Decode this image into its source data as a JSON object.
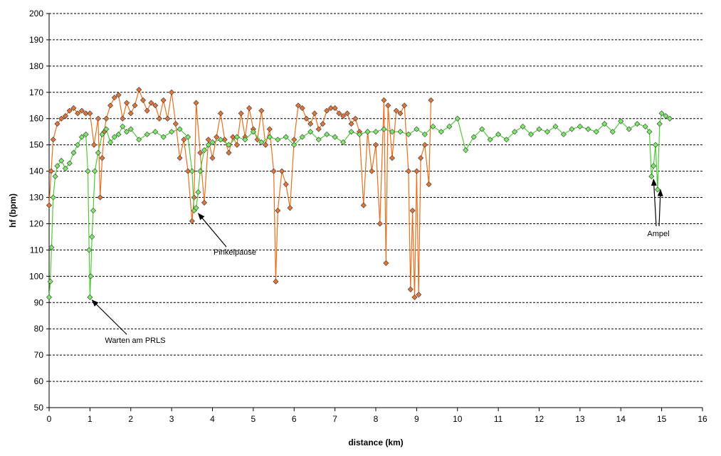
{
  "chart_data": {
    "type": "line",
    "xlabel": "distance (km)",
    "ylabel": "hf (bpm)",
    "xlim": [
      0,
      16
    ],
    "ylim": [
      50,
      200
    ],
    "x_ticks": [
      "0",
      "1",
      "2",
      "3",
      "4",
      "5",
      "6",
      "7",
      "8",
      "9",
      "10",
      "11",
      "12",
      "13",
      "14",
      "15",
      "16"
    ],
    "y_ticks": [
      "50",
      "60",
      "70",
      "80",
      "90",
      "100",
      "110",
      "120",
      "130",
      "140",
      "150",
      "160",
      "170",
      "180",
      "190",
      "200"
    ],
    "grid": "horizontal dashed",
    "legend": "none",
    "colors": {
      "series_green": "#4ccc33",
      "series_orange": "#e8701e",
      "marker_green": "#7ee86a",
      "marker_orange": "#e0763a"
    },
    "series": [
      {
        "color": "#4ccc33",
        "x": [
          0.0,
          0.03,
          0.06,
          0.1,
          0.15,
          0.2,
          0.3,
          0.4,
          0.5,
          0.6,
          0.7,
          0.8,
          0.9,
          0.95,
          0.98,
          1.0,
          1.02,
          1.05,
          1.08,
          1.12,
          1.2,
          1.3,
          1.4,
          1.5,
          1.6,
          1.7,
          1.8,
          1.9,
          2.0,
          2.2,
          2.4,
          2.6,
          2.8,
          3.0,
          3.2,
          3.4,
          3.5,
          3.55,
          3.6,
          3.65,
          3.7,
          3.8,
          3.9,
          4.0,
          4.2,
          4.4,
          4.6,
          4.8,
          5.0,
          5.2,
          5.4,
          5.6,
          5.8,
          6.0,
          6.2,
          6.4,
          6.6,
          6.8,
          7.0,
          7.2,
          7.4,
          7.6,
          7.8,
          8.0,
          8.2,
          8.4,
          8.6,
          8.8,
          9.0,
          9.2,
          9.4,
          9.6,
          9.8,
          10.0,
          10.2,
          10.4,
          10.6,
          10.8,
          11.0,
          11.2,
          11.4,
          11.6,
          11.8,
          12.0,
          12.2,
          12.4,
          12.6,
          12.8,
          13.0,
          13.2,
          13.4,
          13.6,
          13.8,
          14.0,
          14.2,
          14.4,
          14.6,
          14.7,
          14.75,
          14.8,
          14.85,
          14.9,
          14.95,
          15.0,
          15.1,
          15.2
        ],
        "y": [
          92,
          98,
          111,
          130,
          138,
          142,
          144,
          141,
          143,
          147,
          150,
          153,
          154,
          140,
          110,
          92,
          100,
          115,
          125,
          140,
          147,
          154,
          156,
          151,
          153,
          154,
          157,
          155,
          156,
          152,
          154,
          155,
          153,
          155,
          156,
          153,
          140,
          125,
          126,
          132,
          140,
          148,
          150,
          151,
          152,
          150,
          153,
          152,
          155,
          151,
          153,
          152,
          153,
          150,
          153,
          155,
          152,
          154,
          153,
          151,
          155,
          154,
          155,
          155,
          156,
          155,
          155,
          154,
          156,
          154,
          157,
          155,
          157,
          160,
          148,
          153,
          156,
          152,
          154,
          152,
          155,
          157,
          154,
          156,
          155,
          157,
          154,
          156,
          157,
          156,
          155,
          158,
          155,
          159,
          156,
          158,
          157,
          155,
          138,
          142,
          150,
          133,
          158,
          162,
          161,
          160
        ]
      },
      {
        "color": "#e8701e",
        "x": [
          0.0,
          0.05,
          0.1,
          0.2,
          0.3,
          0.4,
          0.5,
          0.6,
          0.7,
          0.8,
          0.9,
          1.0,
          1.1,
          1.2,
          1.25,
          1.3,
          1.35,
          1.4,
          1.5,
          1.6,
          1.7,
          1.8,
          1.9,
          2.0,
          2.1,
          2.2,
          2.3,
          2.4,
          2.5,
          2.6,
          2.7,
          2.8,
          2.9,
          3.0,
          3.1,
          3.2,
          3.3,
          3.4,
          3.5,
          3.55,
          3.6,
          3.7,
          3.8,
          3.9,
          4.0,
          4.1,
          4.2,
          4.3,
          4.4,
          4.5,
          4.6,
          4.7,
          4.8,
          4.9,
          5.0,
          5.1,
          5.2,
          5.3,
          5.4,
          5.5,
          5.55,
          5.6,
          5.7,
          5.8,
          5.9,
          6.0,
          6.1,
          6.2,
          6.3,
          6.4,
          6.5,
          6.6,
          6.7,
          6.8,
          6.9,
          7.0,
          7.1,
          7.2,
          7.3,
          7.4,
          7.5,
          7.6,
          7.7,
          7.8,
          7.9,
          8.0,
          8.1,
          8.2,
          8.25,
          8.3,
          8.4,
          8.5,
          8.6,
          8.7,
          8.8,
          8.85,
          8.9,
          8.95,
          9.0,
          9.05,
          9.1,
          9.2,
          9.3,
          9.35
        ],
        "y": [
          127,
          140,
          152,
          158,
          160,
          161,
          163,
          164,
          162,
          163,
          162,
          162,
          150,
          160,
          130,
          145,
          155,
          160,
          165,
          168,
          169,
          160,
          166,
          162,
          165,
          171,
          167,
          163,
          166,
          165,
          160,
          167,
          160,
          170,
          158,
          145,
          152,
          140,
          121,
          130,
          166,
          147,
          128,
          152,
          145,
          153,
          162,
          152,
          147,
          153,
          150,
          162,
          153,
          164,
          156,
          152,
          163,
          150,
          156,
          140,
          98,
          125,
          140,
          135,
          126,
          152,
          165,
          164,
          160,
          158,
          162,
          156,
          158,
          163,
          164,
          164,
          162,
          161,
          162,
          158,
          160,
          155,
          127,
          155,
          140,
          150,
          120,
          167,
          105,
          165,
          145,
          163,
          162,
          165,
          140,
          95,
          125,
          92,
          140,
          93,
          145,
          150,
          135,
          167
        ]
      }
    ],
    "annotations": [
      {
        "text": "Warten am PRLS",
        "target_x": 1.0,
        "target_y": 92
      },
      {
        "text": "Pinkelpause",
        "target_x": 3.6,
        "target_y": 125
      },
      {
        "text": "Ampel",
        "target_x": 14.75,
        "target_y": 138
      },
      {
        "text": "",
        "target_x": 14.92,
        "target_y": 134
      }
    ]
  }
}
